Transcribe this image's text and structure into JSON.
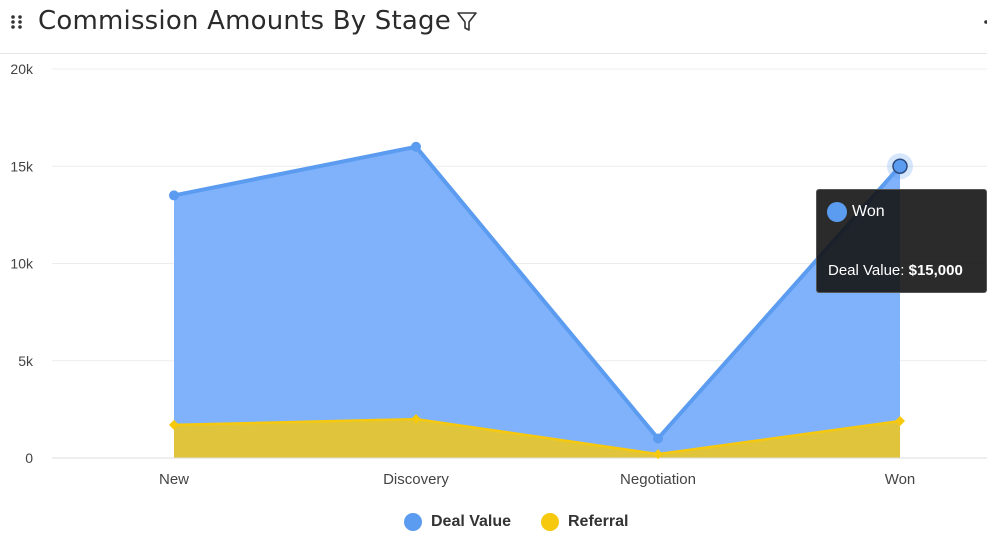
{
  "header": {
    "title": "Commission Amounts By Stage",
    "icons": {
      "drag": "drag-handle-icon",
      "filter": "filter-icon",
      "more": "more-icon"
    }
  },
  "colors": {
    "deal_value_line": "#5b9cf0",
    "deal_value_fill": "#80b2fb",
    "referral_line": "#f6c90e",
    "referral_fill": "#e0c43c",
    "grid": "#ececec",
    "axis_text": "#444444"
  },
  "chart_data": {
    "type": "area",
    "title": "Commission Amounts By Stage",
    "categories": [
      "New",
      "Discovery",
      "Negotiation",
      "Won"
    ],
    "series": [
      {
        "name": "Deal Value",
        "values": [
          13500,
          16000,
          1000,
          15000
        ]
      },
      {
        "name": "Referral",
        "values": [
          1700,
          2000,
          200,
          1900
        ]
      }
    ],
    "ylim": [
      0,
      20000
    ],
    "yticks": [
      0,
      5000,
      10000,
      15000,
      20000
    ],
    "ytick_labels": [
      "0",
      "5k",
      "10k",
      "15k",
      "20k"
    ],
    "grid": true,
    "legend_position": "bottom"
  },
  "tooltip": {
    "title": "Won",
    "label": "Deal Value:",
    "value": "$15,000"
  }
}
